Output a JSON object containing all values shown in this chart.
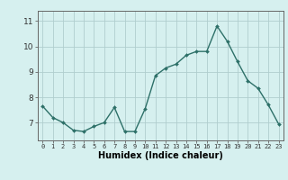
{
  "x": [
    0,
    1,
    2,
    3,
    4,
    5,
    6,
    7,
    8,
    9,
    10,
    11,
    12,
    13,
    14,
    15,
    16,
    17,
    18,
    19,
    20,
    21,
    22,
    23
  ],
  "y": [
    7.65,
    7.2,
    7.0,
    6.7,
    6.65,
    6.85,
    7.0,
    7.6,
    6.65,
    6.65,
    7.55,
    8.85,
    9.15,
    9.3,
    9.65,
    9.8,
    9.8,
    10.8,
    10.2,
    9.4,
    8.65,
    8.35,
    7.7,
    6.95
  ],
  "line_color": "#2d7068",
  "marker": "D",
  "marker_size": 2.0,
  "linewidth": 1.0,
  "bg_color": "#d6f0ef",
  "grid_color": "#b0cece",
  "xlabel": "Humidex (Indice chaleur)",
  "xlabel_fontsize": 7,
  "ytick_labels": [
    "7",
    "8",
    "9",
    "10",
    "11"
  ],
  "ytick_vals": [
    7,
    8,
    9,
    10,
    11
  ],
  "xlim": [
    -0.5,
    23.5
  ],
  "ylim": [
    6.3,
    11.4
  ]
}
